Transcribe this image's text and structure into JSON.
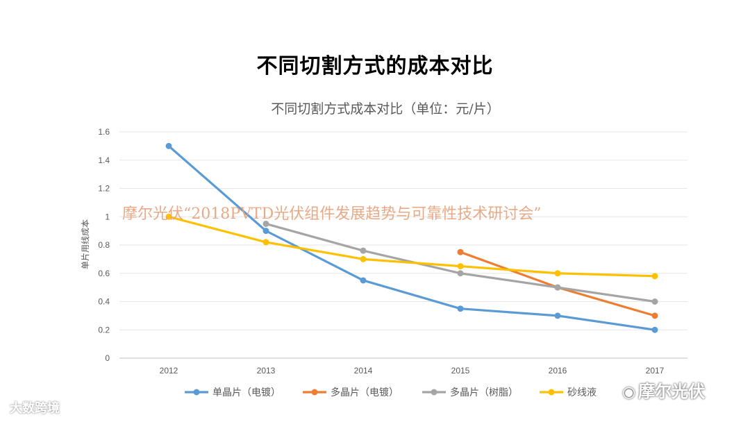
{
  "slide": {
    "title": "不同切割方式的成本对比",
    "overlay_text": "摩尔光伏“2018PVTD光伏组件发展趋势与可靠性技术研讨会”",
    "watermark_left": "大数跨境",
    "wechat_brand": "摩尔光伏"
  },
  "chart_data": {
    "type": "line",
    "title": "不同切割方式成本对比（单位：元/片）",
    "xlabel": "",
    "ylabel": "单片用线成本",
    "categories": [
      "2012",
      "2013",
      "2014",
      "2015",
      "2016",
      "2017"
    ],
    "ylim": [
      0,
      1.6
    ],
    "yticks": [
      0,
      0.2,
      0.4,
      0.6,
      0.8,
      1,
      1.2,
      1.4,
      1.6
    ],
    "ytick_labels": [
      "0",
      "0.2",
      "0.4",
      "0.6",
      "0.8",
      "1",
      "1.2",
      "1.4",
      "1.6"
    ],
    "grid": true,
    "legend_position": "bottom",
    "series": [
      {
        "name": "单晶片（电镀）",
        "color": "#5b9bd5",
        "values": [
          1.5,
          0.9,
          0.55,
          0.35,
          0.3,
          0.2
        ]
      },
      {
        "name": "多晶片（电镀）",
        "color": "#ed7d31",
        "values": [
          null,
          null,
          null,
          0.75,
          0.5,
          0.3
        ]
      },
      {
        "name": "多晶片（树脂）",
        "color": "#a5a5a5",
        "values": [
          null,
          0.95,
          0.76,
          0.6,
          0.5,
          0.4
        ]
      },
      {
        "name": "砂线液",
        "color": "#ffc000",
        "values": [
          1.0,
          0.82,
          0.7,
          0.65,
          0.6,
          0.58
        ]
      }
    ]
  }
}
